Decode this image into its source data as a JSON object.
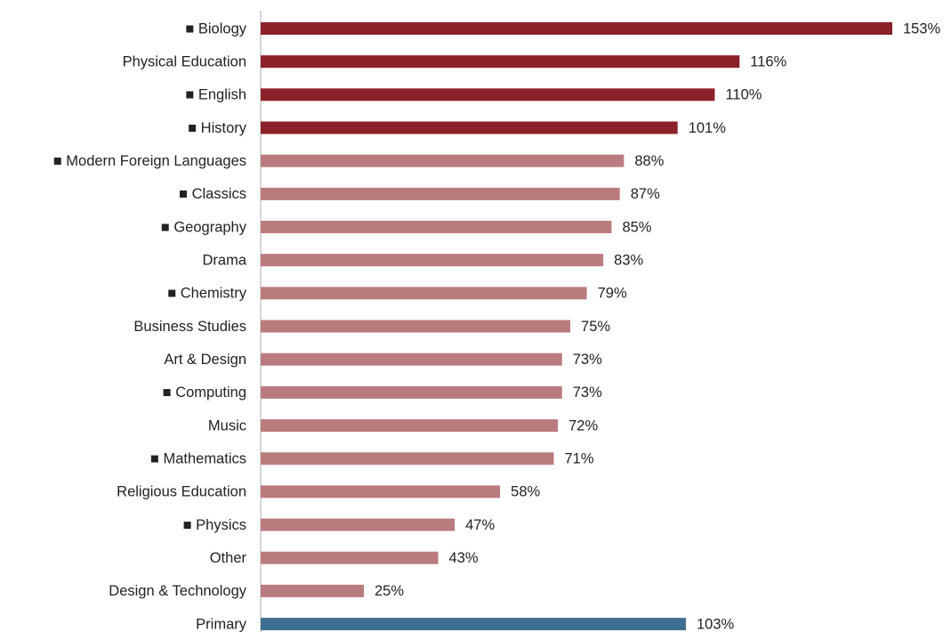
{
  "chart_data": {
    "type": "hbar",
    "categories": [
      "■ Biology",
      "Physical Education",
      "■ English",
      "■ History",
      "■ Modern Foreign Languages",
      "■ Classics",
      "■ Geography",
      "Drama",
      "■ Chemistry",
      "Business Studies",
      "Art & Design",
      "■ Computing",
      "Music",
      "■ Mathematics",
      "Religious Education",
      "■ Physics",
      "Other",
      "Design & Technology",
      "Primary"
    ],
    "values": [
      153,
      116,
      110,
      101,
      88,
      87,
      85,
      83,
      79,
      75,
      73,
      73,
      72,
      71,
      58,
      47,
      43,
      25,
      103
    ],
    "value_labels": [
      "153%",
      "116%",
      "110%",
      "101%",
      "88%",
      "87%",
      "85%",
      "83%",
      "79%",
      "75%",
      "73%",
      "73%",
      "72%",
      "71%",
      "58%",
      "47%",
      "43%",
      "25%",
      "103%"
    ],
    "colors": [
      "#8b2129",
      "#8b2129",
      "#8b2129",
      "#8b2129",
      "#ba7b7e",
      "#ba7b7e",
      "#ba7b7e",
      "#ba7b7e",
      "#ba7b7e",
      "#ba7b7e",
      "#ba7b7e",
      "#ba7b7e",
      "#ba7b7e",
      "#ba7b7e",
      "#ba7b7e",
      "#ba7b7e",
      "#ba7b7e",
      "#ba7b7e",
      "#3f6f90"
    ]
  }
}
